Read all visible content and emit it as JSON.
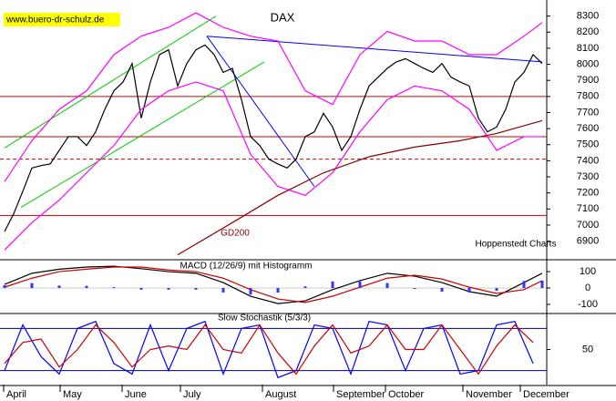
{
  "chart_data": [
    {
      "type": "line",
      "title": "DAX",
      "watermark": "www.buero-dr-schulz.de",
      "annotations": [
        "GD200",
        "Hoppenstedt Charts"
      ],
      "ylim": [
        6790,
        8400
      ],
      "yticks": [
        8300,
        8200,
        8100,
        8000,
        7900,
        7800,
        7700,
        7600,
        7500,
        7400,
        7300,
        7200,
        7100,
        7000,
        6900
      ],
      "series": [
        {
          "color": "#000000",
          "values": [
            6960,
            7070,
            7210,
            7355,
            7370,
            7380,
            7465,
            7550,
            7550,
            7495,
            7580,
            7720,
            7835,
            7890,
            8005,
            7665,
            7890,
            8060,
            8090,
            7865,
            8005,
            8090,
            8120,
            8060,
            7950,
            7975,
            7780,
            7550,
            7495,
            7410,
            7380,
            7355,
            7410,
            7550,
            7580,
            7695,
            7610,
            7465,
            7550,
            7720,
            7865,
            7920,
            7975,
            8015,
            8035,
            8005,
            7975,
            7950,
            8005,
            7920,
            7890,
            7865,
            7665,
            7580,
            7610,
            7720,
            7890,
            7950,
            8060,
            8005
          ]
        },
        {
          "color": "#ff00ff",
          "x": [
            0,
            3,
            6,
            9,
            12,
            15,
            18,
            21,
            24,
            27,
            30,
            33,
            36,
            39,
            42,
            45,
            48,
            51,
            54,
            57,
            59
          ],
          "values": [
            7270,
            7525,
            7720,
            7835,
            8060,
            8175,
            8230,
            8320,
            8230,
            8175,
            8145,
            7835,
            7750,
            8060,
            8205,
            8145,
            8145,
            8060,
            8060,
            8175,
            8260
          ]
        },
        {
          "color": "#ff00ff",
          "x": [
            0,
            3,
            6,
            9,
            12,
            15,
            18,
            21,
            24,
            27,
            30,
            33,
            36,
            39,
            42,
            45,
            48,
            51,
            54,
            57,
            59
          ],
          "values": [
            6845,
            7015,
            7155,
            7325,
            7495,
            7720,
            7835,
            7890,
            7835,
            7440,
            7240,
            7185,
            7325,
            7580,
            7780,
            7865,
            7835,
            7720,
            7465,
            7550,
            7550
          ]
        },
        {
          "color": "#8b0000",
          "x": [
            19,
            25,
            30,
            35,
            40,
            45,
            50,
            54,
            59
          ],
          "values": [
            6815,
            7015,
            7185,
            7325,
            7425,
            7485,
            7525,
            7570,
            7650
          ]
        }
      ],
      "trendlines": [
        {
          "color": "#00cc00",
          "x": [
            0,
            23.2
          ],
          "values": [
            7480,
            8300
          ]
        },
        {
          "color": "#00cc00",
          "x": [
            1.8,
            28.5
          ],
          "values": [
            7110,
            8015
          ]
        },
        {
          "color": "#0000ff",
          "x": [
            22.2,
            34
          ],
          "values": [
            8175,
            7240
          ]
        },
        {
          "color": "#0000ff",
          "x": [
            22.2,
            59
          ],
          "values": [
            8175,
            8015
          ]
        }
      ],
      "hlines": [
        {
          "value": 7800,
          "color": "#cc0000"
        },
        {
          "value": 7550,
          "color": "#cc0000"
        },
        {
          "value": 7060,
          "color": "#cc0000"
        },
        {
          "value": 7410,
          "color": "#cc0000",
          "dashed": true
        }
      ]
    },
    {
      "type": "line",
      "title": "MACD (12/26/9) mit Histogramm",
      "ylim": [
        -150,
        167
      ],
      "yticks": [
        100,
        0,
        -100
      ],
      "x": [
        0,
        3,
        6,
        9,
        12,
        15,
        18,
        21,
        24,
        27,
        30,
        33,
        36,
        39,
        42,
        45,
        48,
        51,
        54,
        57,
        59
      ],
      "series": [
        {
          "color": "#000000",
          "values": [
            22,
            90,
            115,
            128,
            133,
            118,
            100,
            90,
            33,
            -50,
            -95,
            -78,
            -10,
            45,
            90,
            72,
            33,
            -22,
            -50,
            33,
            90
          ]
        },
        {
          "color": "#cc0000",
          "values": [
            5,
            60,
            100,
            115,
            128,
            128,
            110,
            100,
            60,
            -10,
            -67,
            -88,
            -50,
            5,
            60,
            78,
            55,
            5,
            -33,
            -10,
            45
          ]
        },
        {
          "type": "bar",
          "color": "#3333ff",
          "values": [
            17,
            30,
            15,
            13,
            5,
            -10,
            -10,
            -10,
            -27,
            -40,
            -28,
            10,
            40,
            40,
            30,
            -6,
            -22,
            -27,
            -17,
            43,
            45
          ]
        }
      ]
    },
    {
      "type": "line",
      "title": "Slow Stochastik (5/3/3)",
      "ylim": [
        0,
        100
      ],
      "yticks": [
        50
      ],
      "x": [
        0,
        2,
        4,
        6,
        8,
        10,
        12,
        14,
        16,
        18,
        20,
        22,
        24,
        26,
        28,
        30,
        32,
        34,
        36,
        38,
        40,
        42,
        44,
        46,
        48,
        50,
        52,
        54,
        56,
        58
      ],
      "series": [
        {
          "color": "#0000ff",
          "values": [
            20,
            85,
            40,
            15,
            80,
            90,
            30,
            15,
            85,
            20,
            80,
            90,
            15,
            80,
            85,
            10,
            20,
            85,
            80,
            15,
            90,
            85,
            20,
            80,
            85,
            15,
            20,
            85,
            90,
            30
          ]
        },
        {
          "color": "#cc0000",
          "values": [
            30,
            60,
            65,
            25,
            50,
            85,
            60,
            25,
            50,
            55,
            50,
            85,
            50,
            45,
            85,
            45,
            15,
            55,
            85,
            45,
            55,
            85,
            50,
            50,
            85,
            50,
            15,
            55,
            85,
            60
          ]
        }
      ],
      "hlines": [
        {
          "value": 80,
          "color": "#000080"
        },
        {
          "value": 20,
          "color": "#000080"
        }
      ],
      "x_labels": [
        "April",
        "May",
        "June",
        "July",
        "August",
        "September",
        "October",
        "November",
        "December"
      ]
    }
  ]
}
